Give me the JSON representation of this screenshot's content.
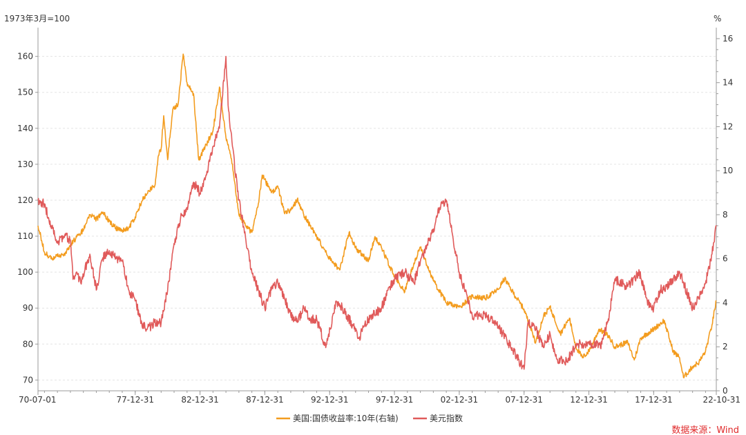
{
  "chart_data": {
    "type": "line",
    "left_unit": "1973年3月=100",
    "right_unit": "%",
    "x_tick_labels": [
      "70-07-01",
      "77-12-31",
      "82-12-31",
      "87-12-31",
      "92-12-31",
      "97-12-31",
      "02-12-31",
      "07-12-31",
      "12-12-31",
      "17-12-31",
      "22-10-31"
    ],
    "x_range": [
      1970.5,
      2022.83
    ],
    "left_axis": {
      "range": [
        67,
        168
      ],
      "ticks": [
        70,
        80,
        90,
        100,
        110,
        120,
        130,
        140,
        150,
        160
      ]
    },
    "right_axis": {
      "range": [
        0,
        16.5
      ],
      "ticks": [
        0,
        2,
        4,
        6,
        8,
        10,
        12,
        14,
        16
      ]
    },
    "grid": true,
    "legend_position": "bottom-center",
    "series": [
      {
        "name": "美国:国债收益率:10年(右轴)",
        "axis": "right",
        "color": "#F39C1E",
        "x": [
          1970.5,
          1971.0,
          1971.5,
          1972.0,
          1972.5,
          1973.0,
          1973.5,
          1974.0,
          1974.5,
          1975.0,
          1975.5,
          1976.0,
          1976.5,
          1977.0,
          1977.5,
          1978.0,
          1978.5,
          1979.0,
          1979.5,
          1979.8,
          1980.0,
          1980.2,
          1980.5,
          1980.9,
          1981.3,
          1981.7,
          1982.0,
          1982.5,
          1982.9,
          1983.5,
          1984.0,
          1984.5,
          1985.0,
          1985.5,
          1986.0,
          1986.5,
          1987.0,
          1987.5,
          1987.8,
          1988.5,
          1989.0,
          1989.5,
          1990.0,
          1990.5,
          1991.0,
          1992.0,
          1993.0,
          1993.8,
          1994.5,
          1995.0,
          1996.0,
          1996.5,
          1997.0,
          1998.0,
          1998.8,
          1999.5,
          2000.0,
          2001.0,
          2002.0,
          2003.0,
          2004.0,
          2005.0,
          2006.0,
          2006.5,
          2007.0,
          2008.0,
          2008.9,
          2009.5,
          2010.0,
          2010.8,
          2011.5,
          2012.0,
          2012.5,
          2013.0,
          2013.8,
          2014.5,
          2015.0,
          2016.0,
          2016.5,
          2017.0,
          2018.0,
          2018.8,
          2019.5,
          2020.0,
          2020.3,
          2021.0,
          2021.5,
          2022.0,
          2022.5,
          2022.83
        ],
        "values": [
          7.5,
          6.3,
          6.0,
          6.1,
          6.2,
          6.6,
          7.0,
          7.3,
          8.0,
          7.8,
          8.1,
          7.7,
          7.4,
          7.3,
          7.4,
          7.9,
          8.6,
          9.1,
          9.3,
          10.7,
          11.0,
          12.5,
          10.5,
          12.8,
          13.0,
          15.3,
          14.0,
          13.5,
          10.5,
          11.2,
          11.8,
          13.8,
          11.5,
          10.3,
          8.0,
          7.5,
          7.2,
          8.5,
          9.8,
          9.0,
          9.3,
          8.1,
          8.2,
          8.7,
          8.0,
          7.0,
          6.0,
          5.5,
          7.2,
          6.5,
          5.9,
          7.0,
          6.5,
          5.2,
          4.5,
          5.8,
          6.5,
          5.0,
          4.0,
          3.8,
          4.3,
          4.2,
          4.6,
          5.1,
          4.6,
          3.7,
          2.2,
          3.4,
          3.8,
          2.6,
          3.3,
          2.0,
          1.5,
          1.8,
          2.8,
          2.5,
          2.0,
          2.2,
          1.4,
          2.4,
          2.8,
          3.2,
          1.8,
          1.5,
          0.6,
          1.1,
          1.3,
          1.8,
          3.0,
          4.1
        ]
      },
      {
        "name": "美元指数",
        "axis": "left",
        "color": "#E05A5A",
        "x": [
          1970.5,
          1971.0,
          1971.5,
          1972.0,
          1972.5,
          1973.0,
          1973.2,
          1973.5,
          1973.8,
          1974.5,
          1975.0,
          1975.5,
          1976.0,
          1976.5,
          1977.0,
          1977.5,
          1978.0,
          1978.5,
          1978.9,
          1979.5,
          1980.0,
          1980.5,
          1981.0,
          1981.5,
          1982.0,
          1982.5,
          1983.0,
          1983.5,
          1984.0,
          1984.5,
          1985.0,
          1985.2,
          1985.5,
          1986.0,
          1986.5,
          1987.0,
          1987.5,
          1988.0,
          1988.5,
          1989.0,
          1989.5,
          1990.0,
          1990.5,
          1991.0,
          1991.5,
          1992.0,
          1992.7,
          1993.5,
          1994.0,
          1995.3,
          1996.0,
          1997.0,
          1997.5,
          1998.0,
          1998.8,
          1999.5,
          2000.0,
          2001.0,
          2001.5,
          2002.0,
          2002.5,
          2003.0,
          2004.0,
          2005.0,
          2006.0,
          2007.0,
          2008.0,
          2008.3,
          2008.9,
          2009.5,
          2010.0,
          2010.5,
          2011.3,
          2012.0,
          2013.0,
          2014.0,
          2014.5,
          2015.0,
          2016.0,
          2016.9,
          2017.5,
          2018.0,
          2018.5,
          2019.0,
          2020.0,
          2020.2,
          2021.0,
          2021.5,
          2022.0,
          2022.5,
          2022.83
        ],
        "values": [
          120,
          119,
          113,
          108,
          110,
          109,
          98,
          100,
          97,
          105,
          95,
          104,
          106,
          104,
          103,
          95,
          92,
          86,
          84,
          86,
          86,
          95,
          108,
          115,
          118,
          125,
          122,
          127,
          135,
          140,
          160,
          145,
          135,
          120,
          110,
          100,
          95,
          90,
          95,
          97,
          93,
          88,
          86,
          90,
          87,
          87,
          79,
          92,
          90,
          82,
          87,
          90,
          95,
          98,
          100,
          97,
          103,
          112,
          118,
          120,
          110,
          100,
          88,
          88,
          85,
          79,
          73,
          86,
          84,
          79,
          83,
          76,
          75,
          80,
          80,
          80,
          87,
          98,
          96,
          100,
          92,
          90,
          95,
          96,
          100,
          98,
          90,
          93,
          97,
          105,
          113
        ]
      }
    ]
  },
  "legend": {
    "items": [
      {
        "label": "美国:国债收益率:10年(右轴)",
        "color": "#F39C1E"
      },
      {
        "label": "美元指数",
        "color": "#E05A5A"
      }
    ]
  },
  "source": {
    "text": "数据来源：Wind",
    "color": "#E0292A"
  }
}
